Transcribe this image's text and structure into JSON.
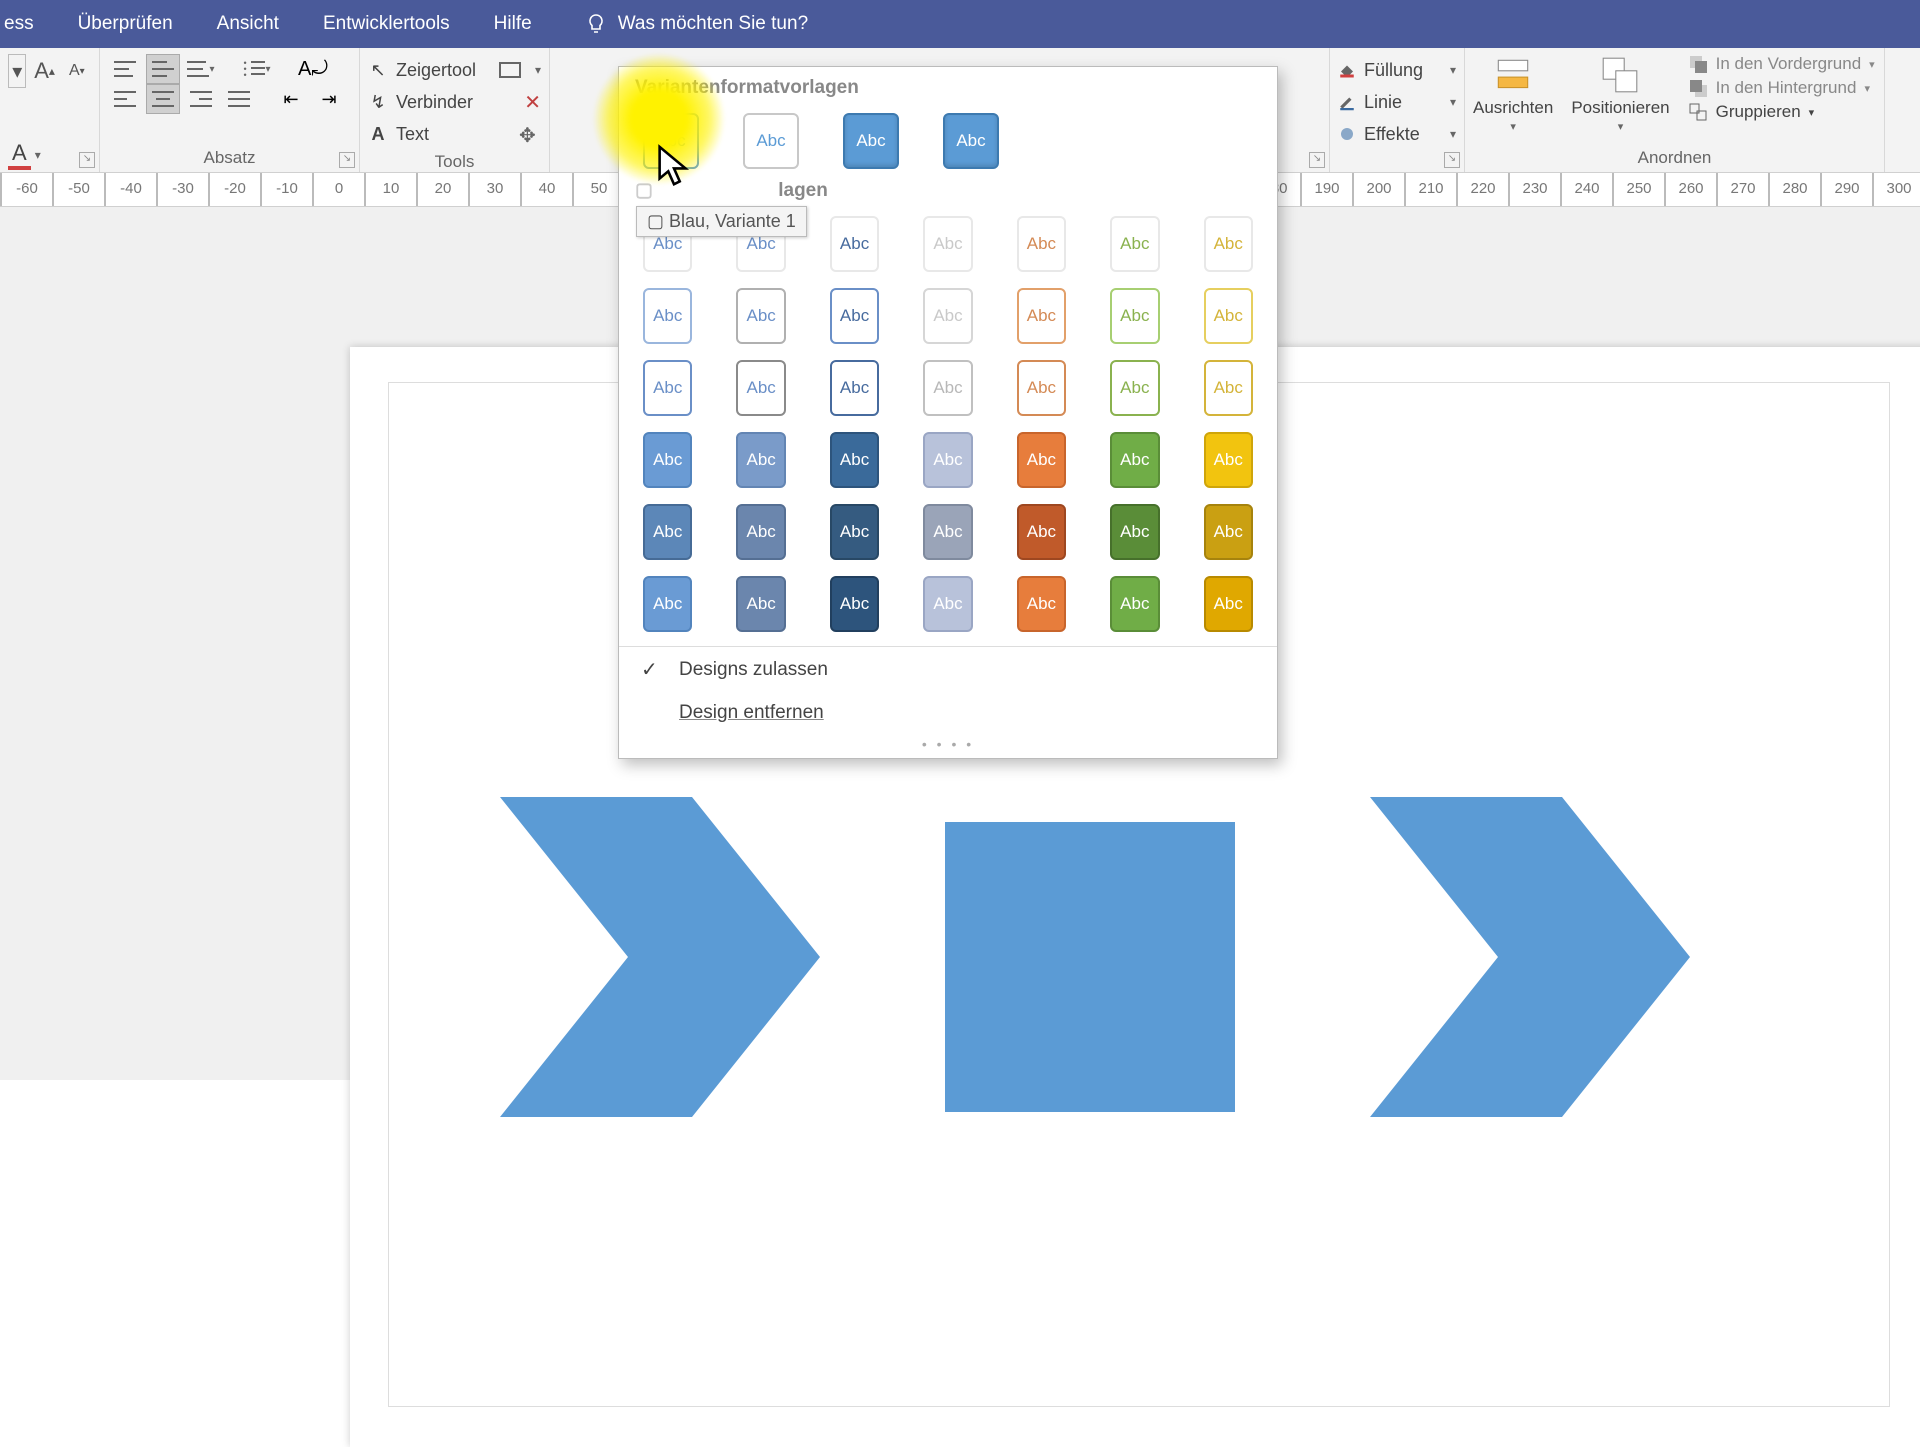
{
  "menu": {
    "items": [
      "ess",
      "Überprüfen",
      "Ansicht",
      "Entwicklertools",
      "Hilfe"
    ],
    "tell_me": "Was möchten Sie tun?"
  },
  "groups": {
    "font": "",
    "para": "Absatz",
    "tools": "Tools",
    "styles": "Variantenformatvorlagen",
    "arrange": "Anordnen"
  },
  "tools": {
    "pointer": "Zeigertool",
    "connector": "Verbinder",
    "text": "Text"
  },
  "shapefmt": {
    "fill": "Füllung",
    "line": "Linie",
    "effects": "Effekte"
  },
  "arrange": {
    "align": "Ausrichten",
    "position": "Positionieren",
    "front": "In den Vordergrund",
    "back": "In den Hintergrund",
    "group": "Gruppieren"
  },
  "gallery": {
    "title": "Variantenformatvorlagen",
    "section2": "lagen",
    "tooltip": "Blau, Variante 1",
    "allow": "Designs zulassen",
    "remove": "Design entfernen",
    "abc": "Abc",
    "header_row": [
      {
        "bg": "#ffffff",
        "fg": "#5b9bd5",
        "bd": "#5b9bd5"
      },
      {
        "bg": "#ffffff",
        "fg": "#5b9bd5",
        "bd": "#c8c8c8"
      },
      {
        "bg": "#5b9bd5",
        "fg": "#ffffff",
        "bd": "#3d7ab0"
      },
      {
        "bg": "#5b9bd5",
        "fg": "#ffffff",
        "bd": "#3d7ab0"
      }
    ],
    "rows": [
      [
        {
          "bg": "#fff",
          "fg": "#6a8fc7",
          "bd": "#e8e8e8"
        },
        {
          "bg": "#fff",
          "fg": "#6a8fc7",
          "bd": "#e8e8e8"
        },
        {
          "bg": "#fff",
          "fg": "#476b9e",
          "bd": "#e8e8e8"
        },
        {
          "bg": "#fff",
          "fg": "#c9c9c9",
          "bd": "#e8e8e8"
        },
        {
          "bg": "#fff",
          "fg": "#d48a55",
          "bd": "#e8e8e8"
        },
        {
          "bg": "#fff",
          "fg": "#8ab24f",
          "bd": "#e8e8e8"
        },
        {
          "bg": "#fff",
          "fg": "#d4b43a",
          "bd": "#e8e8e8"
        }
      ],
      [
        {
          "bg": "#fff",
          "fg": "#6a8fc7",
          "bd": "#9ab6dd"
        },
        {
          "bg": "#fff",
          "fg": "#6a8fc7",
          "bd": "#b0b0b0"
        },
        {
          "bg": "#fff",
          "fg": "#476b9e",
          "bd": "#6a8fc7"
        },
        {
          "bg": "#fff",
          "fg": "#c9c9c9",
          "bd": "#d6d6d6"
        },
        {
          "bg": "#fff",
          "fg": "#d48a55",
          "bd": "#e2a06a"
        },
        {
          "bg": "#fff",
          "fg": "#8ab24f",
          "bd": "#a7cf72"
        },
        {
          "bg": "#fff",
          "fg": "#d4b43a",
          "bd": "#e6cf5f"
        }
      ],
      [
        {
          "bg": "#fff",
          "fg": "#6a8fc7",
          "bd": "#6a8fc7"
        },
        {
          "bg": "#fff",
          "fg": "#6a8fc7",
          "bd": "#8a8a8a"
        },
        {
          "bg": "#fff",
          "fg": "#476b9e",
          "bd": "#476b9e"
        },
        {
          "bg": "#fff",
          "fg": "#b8b8b8",
          "bd": "#c0c0c0"
        },
        {
          "bg": "#fff",
          "fg": "#d48a55",
          "bd": "#d48a55"
        },
        {
          "bg": "#fff",
          "fg": "#8ab24f",
          "bd": "#8ab24f"
        },
        {
          "bg": "#fff",
          "fg": "#d4b43a",
          "bd": "#d4b43a"
        }
      ],
      [
        {
          "bg": "#6a9bd4",
          "fg": "#fff",
          "bd": "#5284bd"
        },
        {
          "bg": "#7a9bc9",
          "fg": "#fff",
          "bd": "#6385b3"
        },
        {
          "bg": "#3a6a9a",
          "fg": "#fff",
          "bd": "#2d547c"
        },
        {
          "bg": "#b8c2da",
          "fg": "#fff",
          "bd": "#9aa6c4"
        },
        {
          "bg": "#e77d3c",
          "fg": "#fff",
          "bd": "#c8652c"
        },
        {
          "bg": "#70ad47",
          "fg": "#fff",
          "bd": "#5a8d38"
        },
        {
          "bg": "#f2c40f",
          "fg": "#fff",
          "bd": "#cfa50a"
        }
      ],
      [
        {
          "bg": "#5c87b8",
          "fg": "#fff",
          "bd": "#466b96"
        },
        {
          "bg": "#6b86ad",
          "fg": "#fff",
          "bd": "#556f93"
        },
        {
          "bg": "#355b80",
          "fg": "#fff",
          "bd": "#284865"
        },
        {
          "bg": "#9aa4b8",
          "fg": "#fff",
          "bd": "#7f8a9e"
        },
        {
          "bg": "#c05a2a",
          "fg": "#fff",
          "bd": "#9e4720"
        },
        {
          "bg": "#5a8d38",
          "fg": "#fff",
          "bd": "#46702b"
        },
        {
          "bg": "#caa012",
          "fg": "#fff",
          "bd": "#a6830d"
        }
      ],
      [
        {
          "bg": "#6a9bd4",
          "fg": "#fff",
          "bd": "#5284bd"
        },
        {
          "bg": "#6b86ad",
          "fg": "#fff",
          "bd": "#556f93"
        },
        {
          "bg": "#2d547c",
          "fg": "#fff",
          "bd": "#213f5e"
        },
        {
          "bg": "#b8c2da",
          "fg": "#fff",
          "bd": "#9aa6c4"
        },
        {
          "bg": "#e77d3c",
          "fg": "#fff",
          "bd": "#c8652c"
        },
        {
          "bg": "#70ad47",
          "fg": "#fff",
          "bd": "#5a8d38"
        },
        {
          "bg": "#e0a800",
          "fg": "#fff",
          "bd": "#b88a00"
        }
      ]
    ]
  },
  "ruler": {
    "start": -60,
    "step": 10,
    "count": 38
  },
  "chevron": {
    "fill": "#5b9bd5"
  }
}
